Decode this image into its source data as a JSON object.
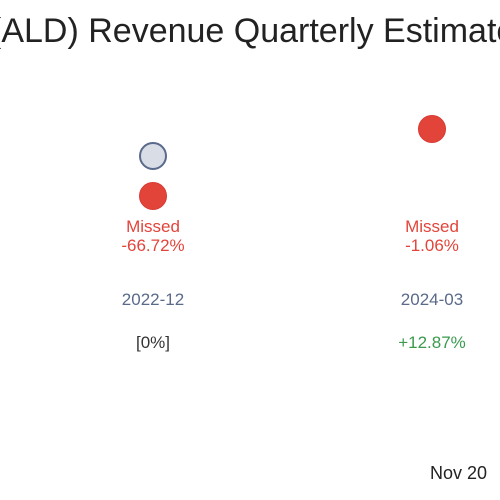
{
  "title": "(ALD) Revenue Quarterly Estimate",
  "footer_date": "Nov 20",
  "colors": {
    "missed": "#e3443a",
    "estimate_fill": "#d9dde6",
    "estimate_border": "#5a6a8a",
    "positive": "#3a9a4e"
  },
  "chart_data": {
    "type": "scatter",
    "title": "(ALD) Revenue Quarterly Estimate",
    "categories": [
      "2022-12",
      "2024-03"
    ],
    "series": [
      {
        "values": [
          {
            "period": "2022-12",
            "status": "Missed",
            "surprise": "-66.72%",
            "change": "[0%]"
          },
          {
            "period": "2024-03",
            "status": "Missed",
            "surprise": "-1.06%",
            "change": "+12.87%"
          }
        ]
      }
    ],
    "columns": [
      {
        "period": "2022-12",
        "status": "Missed",
        "surprise": "-66.72%",
        "change": "[0%]",
        "change_tone": "neutral"
      },
      {
        "period": "2024-03",
        "status": "Missed",
        "surprise": "-1.06%",
        "change": "+12.87%",
        "change_tone": "positive"
      }
    ],
    "grid": false
  }
}
